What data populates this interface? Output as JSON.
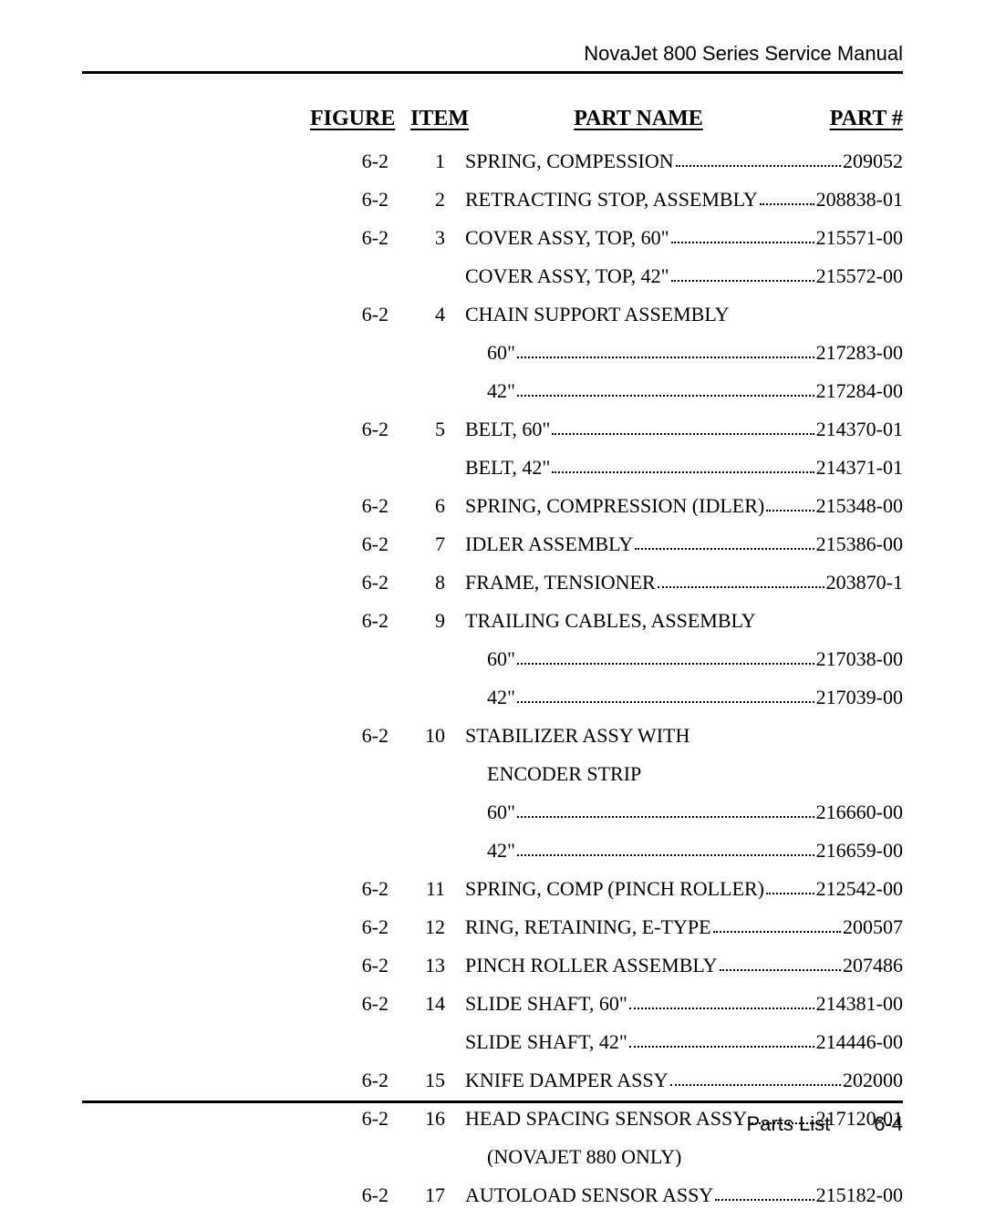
{
  "document": {
    "header_title": "NovaJet 800 Series Service Manual",
    "footer_section": "Parts List",
    "footer_page": "6-4",
    "font_body": "Times New Roman",
    "font_header": "Arial",
    "text_color": "#000000",
    "background_color": "#ffffff",
    "rule_color": "#000000",
    "columns": {
      "figure": "FIGURE",
      "item": "ITEM",
      "name": "PART NAME",
      "part": "PART #"
    }
  },
  "rows": [
    {
      "figure": "6-2",
      "item": "1",
      "name": "SPRING, COMPESSION",
      "part": "209052",
      "indent": false,
      "leader": true
    },
    {
      "figure": "6-2",
      "item": "2",
      "name": "RETRACTING STOP, ASSEMBLY",
      "part": "208838-01",
      "indent": false,
      "leader": true
    },
    {
      "figure": "6-2",
      "item": "3",
      "name": "COVER ASSY, TOP, 60\"",
      "part": "215571-00",
      "indent": false,
      "leader": true
    },
    {
      "figure": "",
      "item": "",
      "name": "COVER ASSY, TOP, 42\"",
      "part": "215572-00",
      "indent": false,
      "leader": true
    },
    {
      "figure": "6-2",
      "item": "4",
      "name": "CHAIN SUPPORT ASSEMBLY",
      "part": "",
      "indent": false,
      "leader": false
    },
    {
      "figure": "",
      "item": "",
      "name": "60\"",
      "part": "217283-00",
      "indent": true,
      "leader": true
    },
    {
      "figure": "",
      "item": "",
      "name": "42\"",
      "part": "217284-00",
      "indent": true,
      "leader": true
    },
    {
      "figure": "6-2",
      "item": "5",
      "name": "BELT, 60\"",
      "part": "214370-01",
      "indent": false,
      "leader": true
    },
    {
      "figure": "",
      "item": "",
      "name": "BELT, 42\"",
      "part": "214371-01",
      "indent": false,
      "leader": true
    },
    {
      "figure": "6-2",
      "item": "6",
      "name": "SPRING, COMPRESSION (IDLER)",
      "part": "215348-00",
      "indent": false,
      "leader": true
    },
    {
      "figure": "6-2",
      "item": "7",
      "name": "IDLER ASSEMBLY",
      "part": "215386-00",
      "indent": false,
      "leader": true
    },
    {
      "figure": "6-2",
      "item": "8",
      "name": "FRAME, TENSIONER",
      "part": "203870-1",
      "indent": false,
      "leader": true
    },
    {
      "figure": "6-2",
      "item": "9",
      "name": "TRAILING CABLES, ASSEMBLY",
      "part": "",
      "indent": false,
      "leader": false
    },
    {
      "figure": "",
      "item": "",
      "name": "60\"",
      "part": "217038-00",
      "indent": true,
      "leader": true
    },
    {
      "figure": "",
      "item": "",
      "name": "42\"",
      "part": "217039-00",
      "indent": true,
      "leader": true
    },
    {
      "figure": "6-2",
      "item": "10",
      "name": "STABILIZER ASSY WITH",
      "part": "",
      "indent": false,
      "leader": false
    },
    {
      "figure": "",
      "item": "",
      "name": "ENCODER STRIP",
      "part": "",
      "indent": true,
      "leader": false
    },
    {
      "figure": "",
      "item": "",
      "name": "60\"",
      "part": "216660-00",
      "indent": true,
      "leader": true
    },
    {
      "figure": "",
      "item": "",
      "name": "42\"",
      "part": "216659-00",
      "indent": true,
      "leader": true
    },
    {
      "figure": "6-2",
      "item": "11",
      "name": "SPRING, COMP (PINCH ROLLER)",
      "part": "212542-00",
      "indent": false,
      "leader": true
    },
    {
      "figure": "6-2",
      "item": "12",
      "name": "RING, RETAINING, E-TYPE",
      "part": "200507",
      "indent": false,
      "leader": true
    },
    {
      "figure": "6-2",
      "item": "13",
      "name": "PINCH ROLLER ASSEMBLY",
      "part": "207486",
      "indent": false,
      "leader": true
    },
    {
      "figure": "6-2",
      "item": "14",
      "name": "SLIDE SHAFT, 60\"",
      "part": "214381-00",
      "indent": false,
      "leader": true
    },
    {
      "figure": "",
      "item": "",
      "name": "SLIDE SHAFT, 42\"",
      "part": "214446-00",
      "indent": false,
      "leader": true
    },
    {
      "figure": "6-2",
      "item": "15",
      "name": "KNIFE DAMPER ASSY",
      "part": "202000",
      "indent": false,
      "leader": true
    },
    {
      "figure": "6-2",
      "item": "16",
      "name": "HEAD SPACING SENSOR ASSY",
      "part": "217120-01",
      "indent": false,
      "leader": true
    },
    {
      "figure": "",
      "item": "",
      "name": "(NOVAJET 880 ONLY)",
      "part": "",
      "indent": true,
      "leader": false
    },
    {
      "figure": "6-2",
      "item": "17",
      "name": "AUTOLOAD SENSOR ASSY",
      "part": "215182-00",
      "indent": false,
      "leader": true
    }
  ]
}
